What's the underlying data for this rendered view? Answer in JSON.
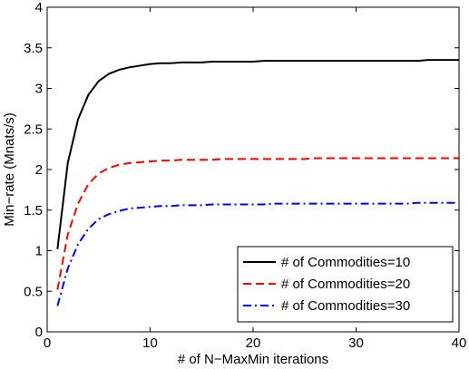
{
  "chart_data": {
    "type": "line",
    "xlabel": "# of N−MaxMin iterations",
    "ylabel": "Min−rate (Mnats/s)",
    "xlim": [
      0,
      40
    ],
    "ylim": [
      0,
      4
    ],
    "xticks": [
      0,
      10,
      20,
      30,
      40
    ],
    "yticks": [
      0,
      0.5,
      1,
      1.5,
      2,
      2.5,
      3,
      3.5,
      4
    ],
    "xtick_labels": [
      "0",
      "10",
      "20",
      "30",
      "40"
    ],
    "ytick_labels": [
      "0",
      "0.5",
      "1",
      "1.5",
      "2",
      "2.5",
      "3",
      "3.5",
      "4"
    ],
    "grid": false,
    "legend_position": "bottom-right",
    "x": [
      1,
      2,
      3,
      4,
      5,
      6,
      7,
      8,
      9,
      10,
      11,
      12,
      13,
      14,
      15,
      16,
      17,
      18,
      19,
      20,
      21,
      22,
      23,
      24,
      25,
      26,
      27,
      28,
      29,
      30,
      31,
      32,
      33,
      34,
      35,
      36,
      37,
      38,
      39,
      40
    ],
    "series": [
      {
        "name": "# of Commodities=10",
        "color": "#000000",
        "dash": "solid",
        "values": [
          1.02,
          2.08,
          2.62,
          2.92,
          3.09,
          3.18,
          3.23,
          3.26,
          3.28,
          3.3,
          3.31,
          3.31,
          3.32,
          3.32,
          3.32,
          3.33,
          3.33,
          3.33,
          3.33,
          3.33,
          3.34,
          3.34,
          3.34,
          3.34,
          3.34,
          3.34,
          3.34,
          3.34,
          3.34,
          3.34,
          3.34,
          3.34,
          3.34,
          3.34,
          3.34,
          3.34,
          3.35,
          3.35,
          3.35,
          3.35
        ]
      },
      {
        "name": "# of Commodities=20",
        "color": "#ff0000",
        "dash": "dashed",
        "values": [
          0.52,
          1.2,
          1.58,
          1.82,
          1.95,
          2.02,
          2.06,
          2.08,
          2.09,
          2.1,
          2.11,
          2.11,
          2.12,
          2.12,
          2.12,
          2.12,
          2.13,
          2.13,
          2.13,
          2.13,
          2.13,
          2.13,
          2.13,
          2.13,
          2.13,
          2.14,
          2.14,
          2.14,
          2.14,
          2.14,
          2.14,
          2.14,
          2.14,
          2.14,
          2.14,
          2.14,
          2.14,
          2.14,
          2.14,
          2.14
        ]
      },
      {
        "name": "# of Commodities=30",
        "color": "#0000ff",
        "dash": "dashdot",
        "values": [
          0.32,
          0.78,
          1.08,
          1.27,
          1.39,
          1.45,
          1.49,
          1.52,
          1.53,
          1.54,
          1.55,
          1.55,
          1.56,
          1.56,
          1.56,
          1.57,
          1.57,
          1.57,
          1.57,
          1.57,
          1.57,
          1.58,
          1.58,
          1.58,
          1.58,
          1.58,
          1.58,
          1.58,
          1.58,
          1.58,
          1.58,
          1.58,
          1.58,
          1.58,
          1.58,
          1.59,
          1.59,
          1.59,
          1.59,
          1.59
        ]
      }
    ]
  }
}
